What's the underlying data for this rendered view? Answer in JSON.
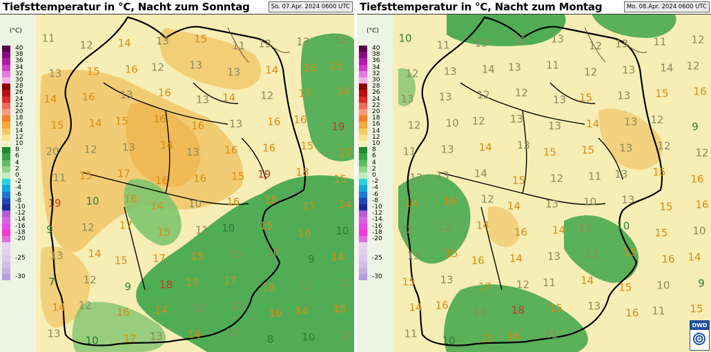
{
  "colors": {
    "land_base": "#f6eeb4",
    "orange_area": "#f0c266",
    "green_area": "#3fa54a",
    "light_green": "#7fc46e",
    "border": "#000000",
    "river": "#6b4b2a"
  },
  "legend": {
    "unit": "(°C)",
    "entries": [
      {
        "label": "40",
        "color": "#5a0050"
      },
      {
        "label": "38",
        "color": "#8a0a80"
      },
      {
        "label": "36",
        "color": "#b01aa5"
      },
      {
        "label": "34",
        "color": "#d03bc8"
      },
      {
        "label": "32",
        "color": "#e878df"
      },
      {
        "label": "30",
        "color": "#f2b0ec"
      },
      {
        "label": "28",
        "color": "#8b0000"
      },
      {
        "label": "26",
        "color": "#b81010"
      },
      {
        "label": "24",
        "color": "#e02a2a"
      },
      {
        "label": "22",
        "color": "#f26a5a"
      },
      {
        "label": "20",
        "color": "#f79a82"
      },
      {
        "label": "18",
        "color": "#f4802a"
      },
      {
        "label": "16",
        "color": "#f7a640"
      },
      {
        "label": "14",
        "color": "#f9c862"
      },
      {
        "label": "12",
        "color": "#fbe48a"
      },
      {
        "label": "10",
        "color": "#f8f3bc"
      },
      {
        "label": "8",
        "color": "#1e8a2e"
      },
      {
        "label": "6",
        "color": "#37a543"
      },
      {
        "label": "4",
        "color": "#5dbe5e"
      },
      {
        "label": "2",
        "color": "#8ed68a"
      },
      {
        "label": "0",
        "color": "#bfeebd"
      },
      {
        "label": "-2",
        "color": "#2dd0e0"
      },
      {
        "label": "-4",
        "color": "#16a6da"
      },
      {
        "label": "-6",
        "color": "#1c78d2"
      },
      {
        "label": "-8",
        "color": "#2248b8"
      },
      {
        "label": "-10",
        "color": "#1c2c9a"
      },
      {
        "label": "-12",
        "color": "#b85ad8"
      },
      {
        "label": "-14",
        "color": "#d860e0"
      },
      {
        "label": "-16",
        "color": "#ea4ae8"
      },
      {
        "label": "-18",
        "color": "#f23ad4"
      },
      {
        "label": "-20",
        "color": "#e46ae2"
      },
      {
        "label": "",
        "color": "#ead4f2"
      },
      {
        "label": "",
        "color": "#e4d0f0"
      },
      {
        "label": "-25",
        "color": "#dcc8ee"
      },
      {
        "label": "",
        "color": "#d2bcea"
      },
      {
        "label": "",
        "color": "#c8b0e6"
      },
      {
        "label": "-30",
        "color": "#b89ce0"
      }
    ]
  },
  "panels": [
    {
      "title": "Tiefsttemperatur in °C, Nacht zum Sonntag",
      "stamp": "So. 07.Apr. 2024 0600 UTC",
      "values": [
        {
          "v": "11",
          "t": "dk"
        },
        {
          "v": "12",
          "t": "dk"
        },
        {
          "v": "14",
          "t": "org"
        },
        {
          "v": "13",
          "t": "dk"
        },
        {
          "v": "15",
          "t": "org"
        },
        {
          "v": "11",
          "t": "dk"
        },
        {
          "v": "13",
          "t": "dk"
        },
        {
          "v": "13",
          "t": "dk"
        },
        {
          "v": "12",
          "t": "dk"
        },
        {
          "v": "13",
          "t": "dk"
        },
        {
          "v": "15",
          "t": "org"
        },
        {
          "v": "16",
          "t": "org"
        },
        {
          "v": "12",
          "t": "dk"
        },
        {
          "v": "13",
          "t": "dk"
        },
        {
          "v": "13",
          "t": "dk"
        },
        {
          "v": "14",
          "t": "org"
        },
        {
          "v": "16",
          "t": "org"
        },
        {
          "v": "15",
          "t": "org"
        },
        {
          "v": "14",
          "t": "org"
        },
        {
          "v": "16",
          "t": "org"
        },
        {
          "v": "13",
          "t": "dk"
        },
        {
          "v": "16",
          "t": "org"
        },
        {
          "v": "13",
          "t": "dk"
        },
        {
          "v": "14",
          "t": "org"
        },
        {
          "v": "12",
          "t": "dk"
        },
        {
          "v": "17",
          "t": "org"
        },
        {
          "v": "14",
          "t": "org"
        },
        {
          "v": "15",
          "t": "org"
        },
        {
          "v": "14",
          "t": "org"
        },
        {
          "v": "15",
          "t": "org"
        },
        {
          "v": "16",
          "t": "org"
        },
        {
          "v": "16",
          "t": "org"
        },
        {
          "v": "13",
          "t": "dk"
        },
        {
          "v": "16",
          "t": "org"
        },
        {
          "v": "16",
          "t": "org"
        },
        {
          "v": "19",
          "t": "red"
        },
        {
          "v": "20",
          "t": "dk"
        },
        {
          "v": "12",
          "t": "dk"
        },
        {
          "v": "13",
          "t": "dk"
        },
        {
          "v": "14",
          "t": "org"
        },
        {
          "v": "13",
          "t": "dk"
        },
        {
          "v": "16",
          "t": "org"
        },
        {
          "v": "16",
          "t": "org"
        },
        {
          "v": "15",
          "t": "org"
        },
        {
          "v": "17",
          "t": "org"
        },
        {
          "v": "11",
          "t": "dk"
        },
        {
          "v": "15",
          "t": "org"
        },
        {
          "v": "17",
          "t": "org"
        },
        {
          "v": "16",
          "t": "org"
        },
        {
          "v": "16",
          "t": "org"
        },
        {
          "v": "15",
          "t": "org"
        },
        {
          "v": "19",
          "t": "red"
        },
        {
          "v": "18",
          "t": "org"
        },
        {
          "v": "15",
          "t": "org"
        },
        {
          "v": "19",
          "t": "red"
        },
        {
          "v": "10",
          "t": "grn"
        },
        {
          "v": "16",
          "t": "org"
        },
        {
          "v": "14",
          "t": "org"
        },
        {
          "v": "10",
          "t": "dk"
        },
        {
          "v": "16",
          "t": "org"
        },
        {
          "v": "15",
          "t": "org"
        },
        {
          "v": "17",
          "t": "org"
        },
        {
          "v": "14",
          "t": "org"
        },
        {
          "v": "9",
          "t": "grn"
        },
        {
          "v": "12",
          "t": "dk"
        },
        {
          "v": "17",
          "t": "org"
        },
        {
          "v": "15",
          "t": "org"
        },
        {
          "v": "11",
          "t": "dk"
        },
        {
          "v": "10",
          "t": "grn"
        },
        {
          "v": "15",
          "t": "org"
        },
        {
          "v": "16",
          "t": "org"
        },
        {
          "v": "10",
          "t": "grn"
        },
        {
          "v": "13",
          "t": "dk"
        },
        {
          "v": "14",
          "t": "org"
        },
        {
          "v": "15",
          "t": "org"
        },
        {
          "v": "17",
          "t": "org"
        },
        {
          "v": "15",
          "t": "org"
        },
        {
          "v": "13",
          "t": "dk"
        },
        {
          "v": "10",
          "t": "dk"
        },
        {
          "v": "9",
          "t": "grn"
        },
        {
          "v": "14",
          "t": "org"
        },
        {
          "v": "7",
          "t": "grn"
        },
        {
          "v": "12",
          "t": "dk"
        },
        {
          "v": "9",
          "t": "grn"
        },
        {
          "v": "18",
          "t": "red"
        },
        {
          "v": "15",
          "t": "org"
        },
        {
          "v": "17",
          "t": "org"
        },
        {
          "v": "16",
          "t": "org"
        },
        {
          "v": "11",
          "t": "dk"
        },
        {
          "v": "10",
          "t": "dk"
        },
        {
          "v": "14",
          "t": "org"
        },
        {
          "v": "12",
          "t": "dk"
        },
        {
          "v": "16",
          "t": "org"
        },
        {
          "v": "14",
          "t": "org"
        },
        {
          "v": "12",
          "t": "dk"
        },
        {
          "v": "12",
          "t": "dk"
        },
        {
          "v": "16",
          "t": "org"
        },
        {
          "v": "14",
          "t": "org"
        },
        {
          "v": "15",
          "t": "org"
        },
        {
          "v": "13",
          "t": "dk"
        },
        {
          "v": "10",
          "t": "grn"
        },
        {
          "v": "17",
          "t": "org"
        },
        {
          "v": "13",
          "t": "dk"
        },
        {
          "v": "14",
          "t": "org"
        },
        {
          "v": "13",
          "t": "dk"
        },
        {
          "v": "8",
          "t": "grn"
        },
        {
          "v": "10",
          "t": "grn"
        },
        {
          "v": "12",
          "t": "dk"
        }
      ]
    },
    {
      "title": "Tiefsttemperatur in °C, Nacht zum Montag",
      "stamp": "Mo. 08.Apr. 2024 0600 UTC",
      "values": [
        {
          "v": "10",
          "t": "grn"
        },
        {
          "v": "11",
          "t": "dk"
        },
        {
          "v": "13",
          "t": "dk"
        },
        {
          "v": "12",
          "t": "dk"
        },
        {
          "v": "13",
          "t": "dk"
        },
        {
          "v": "12",
          "t": "dk"
        },
        {
          "v": "13",
          "t": "dk"
        },
        {
          "v": "11",
          "t": "dk"
        },
        {
          "v": "12",
          "t": "dk"
        },
        {
          "v": "12",
          "t": "dk"
        },
        {
          "v": "13",
          "t": "dk"
        },
        {
          "v": "14",
          "t": "dk"
        },
        {
          "v": "13",
          "t": "dk"
        },
        {
          "v": "11",
          "t": "dk"
        },
        {
          "v": "12",
          "t": "dk"
        },
        {
          "v": "13",
          "t": "dk"
        },
        {
          "v": "14",
          "t": "dk"
        },
        {
          "v": "12",
          "t": "dk"
        },
        {
          "v": "13",
          "t": "dk"
        },
        {
          "v": "13",
          "t": "dk"
        },
        {
          "v": "12",
          "t": "dk"
        },
        {
          "v": "12",
          "t": "dk"
        },
        {
          "v": "13",
          "t": "dk"
        },
        {
          "v": "15",
          "t": "org"
        },
        {
          "v": "13",
          "t": "dk"
        },
        {
          "v": "15",
          "t": "org"
        },
        {
          "v": "16",
          "t": "org"
        },
        {
          "v": "12",
          "t": "dk"
        },
        {
          "v": "10",
          "t": "dk"
        },
        {
          "v": "12",
          "t": "dk"
        },
        {
          "v": "13",
          "t": "dk"
        },
        {
          "v": "13",
          "t": "dk"
        },
        {
          "v": "14",
          "t": "org"
        },
        {
          "v": "13",
          "t": "dk"
        },
        {
          "v": "12",
          "t": "dk"
        },
        {
          "v": "9",
          "t": "grn"
        },
        {
          "v": "11",
          "t": "dk"
        },
        {
          "v": "13",
          "t": "dk"
        },
        {
          "v": "14",
          "t": "org"
        },
        {
          "v": "13",
          "t": "dk"
        },
        {
          "v": "15",
          "t": "org"
        },
        {
          "v": "15",
          "t": "org"
        },
        {
          "v": "13",
          "t": "dk"
        },
        {
          "v": "12",
          "t": "dk"
        },
        {
          "v": "12",
          "t": "dk"
        },
        {
          "v": "12",
          "t": "dk"
        },
        {
          "v": "13",
          "t": "dk"
        },
        {
          "v": "14",
          "t": "dk"
        },
        {
          "v": "15",
          "t": "org"
        },
        {
          "v": "12",
          "t": "dk"
        },
        {
          "v": "11",
          "t": "dk"
        },
        {
          "v": "13",
          "t": "dk"
        },
        {
          "v": "15",
          "t": "org"
        },
        {
          "v": "16",
          "t": "org"
        },
        {
          "v": "14",
          "t": "org"
        },
        {
          "v": "16",
          "t": "org"
        },
        {
          "v": "12",
          "t": "dk"
        },
        {
          "v": "14",
          "t": "org"
        },
        {
          "v": "13",
          "t": "dk"
        },
        {
          "v": "10",
          "t": "dk"
        },
        {
          "v": "13",
          "t": "dk"
        },
        {
          "v": "15",
          "t": "org"
        },
        {
          "v": "16",
          "t": "org"
        },
        {
          "v": "12",
          "t": "dk"
        },
        {
          "v": "12",
          "t": "dk"
        },
        {
          "v": "14",
          "t": "org"
        },
        {
          "v": "16",
          "t": "org"
        },
        {
          "v": "14",
          "t": "org"
        },
        {
          "v": "13",
          "t": "dk"
        },
        {
          "v": "10",
          "t": "grn"
        },
        {
          "v": "15",
          "t": "org"
        },
        {
          "v": "10",
          "t": "dk"
        },
        {
          "v": "13",
          "t": "dk"
        },
        {
          "v": "15",
          "t": "org"
        },
        {
          "v": "16",
          "t": "org"
        },
        {
          "v": "14",
          "t": "org"
        },
        {
          "v": "13",
          "t": "dk"
        },
        {
          "v": "12",
          "t": "dk"
        },
        {
          "v": "15",
          "t": "org"
        },
        {
          "v": "16",
          "t": "org"
        },
        {
          "v": "14",
          "t": "org"
        },
        {
          "v": "15",
          "t": "org"
        },
        {
          "v": "13",
          "t": "dk"
        },
        {
          "v": "17",
          "t": "org"
        },
        {
          "v": "12",
          "t": "dk"
        },
        {
          "v": "11",
          "t": "dk"
        },
        {
          "v": "14",
          "t": "org"
        },
        {
          "v": "15",
          "t": "org"
        },
        {
          "v": "10",
          "t": "dk"
        },
        {
          "v": "9",
          "t": "grn"
        },
        {
          "v": "14",
          "t": "org"
        },
        {
          "v": "16",
          "t": "org"
        },
        {
          "v": "12",
          "t": "dk"
        },
        {
          "v": "18",
          "t": "red"
        },
        {
          "v": "15",
          "t": "org"
        },
        {
          "v": "13",
          "t": "dk"
        },
        {
          "v": "16",
          "t": "org"
        },
        {
          "v": "11",
          "t": "dk"
        },
        {
          "v": "15",
          "t": "org"
        },
        {
          "v": "11",
          "t": "dk"
        },
        {
          "v": "10",
          "t": "grn"
        },
        {
          "v": "15",
          "t": "org"
        },
        {
          "v": "16",
          "t": "org"
        },
        {
          "v": "11",
          "t": "dk"
        }
      ]
    }
  ],
  "logo": {
    "text": "DWD"
  }
}
